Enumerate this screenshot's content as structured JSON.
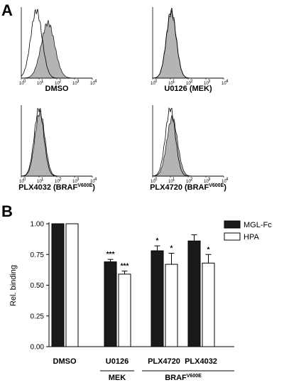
{
  "panels": {
    "a_label": "A",
    "b_label": "B"
  },
  "chart_data": [
    {
      "type": "area",
      "panel": "A",
      "description_axis": "log10 fluorescence 10^0 to 10^4",
      "x_ticks": [
        "10",
        "10",
        "10",
        "10",
        "10"
      ],
      "x_tick_exps": [
        "0",
        "1",
        "2",
        "3",
        "4"
      ],
      "histograms": [
        {
          "title": "DMSO",
          "title_sup": "",
          "filled_peak_log": 1.5,
          "filled_width": 0.38,
          "filled_height": 0.78,
          "open_peak_log": 0.85,
          "open_width": 0.32,
          "open_height": 0.95
        },
        {
          "title": "U0126 (MEK)",
          "title_sup": "",
          "filled_peak_log": 1.05,
          "filled_width": 0.28,
          "filled_height": 0.92,
          "open_peak_log": 1.05,
          "open_width": 0.28,
          "open_height": 0.95
        },
        {
          "title": "PLX4032 (BRAF",
          "title_sup": "V600E",
          "title_end": ")",
          "filled_peak_log": 1.05,
          "filled_width": 0.28,
          "filled_height": 0.9,
          "open_peak_log": 1.0,
          "open_width": 0.27,
          "open_height": 0.95
        },
        {
          "title": "PLX4720 (BRAF",
          "title_sup": "V600E",
          "title_end": ")",
          "filled_peak_log": 1.1,
          "filled_width": 0.3,
          "filled_height": 0.82,
          "open_peak_log": 1.0,
          "open_width": 0.28,
          "open_height": 0.95
        }
      ]
    },
    {
      "type": "bar",
      "panel": "B",
      "categories": [
        "DMSO",
        "U0126",
        "PLX4720",
        "PLX4032"
      ],
      "series": [
        {
          "name": "MGL-Fc",
          "color": "#1a1a1a",
          "values": [
            1.0,
            0.69,
            0.78,
            0.86
          ],
          "errors": [
            0.0,
            0.02,
            0.04,
            0.05
          ],
          "sig": [
            "",
            "***",
            "*",
            ""
          ]
        },
        {
          "name": "HPA",
          "color": "#ffffff",
          "values": [
            1.0,
            0.59,
            0.67,
            0.68
          ],
          "errors": [
            0.0,
            0.025,
            0.09,
            0.07
          ],
          "sig": [
            "",
            "***",
            "*",
            "*"
          ]
        }
      ],
      "ylabel": "Rel. binding",
      "ylim": [
        0,
        1.0
      ],
      "yticks": [
        "0.00",
        "0.25",
        "0.50",
        "0.75",
        "1.00"
      ],
      "group_labels": {
        "mek": "MEK",
        "braf": "BRAF",
        "braf_sup": "V600E"
      }
    }
  ]
}
